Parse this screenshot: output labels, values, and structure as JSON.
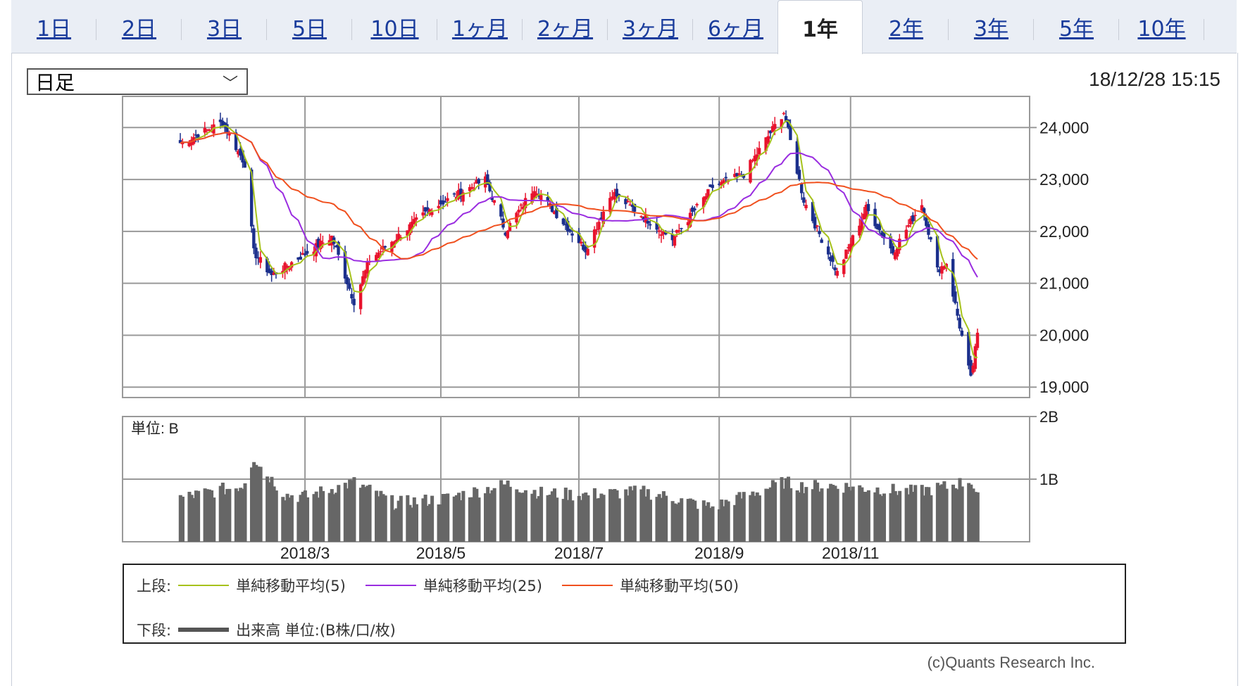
{
  "tabs": [
    {
      "label": "1日",
      "active": false
    },
    {
      "label": "2日",
      "active": false
    },
    {
      "label": "3日",
      "active": false
    },
    {
      "label": "5日",
      "active": false
    },
    {
      "label": "10日",
      "active": false
    },
    {
      "label": "1ヶ月",
      "active": false
    },
    {
      "label": "2ヶ月",
      "active": false
    },
    {
      "label": "3ヶ月",
      "active": false
    },
    {
      "label": "6ヶ月",
      "active": false
    },
    {
      "label": "1年",
      "active": true
    },
    {
      "label": "2年",
      "active": false
    },
    {
      "label": "3年",
      "active": false
    },
    {
      "label": "5年",
      "active": false
    },
    {
      "label": "10年",
      "active": false
    }
  ],
  "period_select": {
    "value": "日足",
    "icon": "chevron-down-icon"
  },
  "datetime": "18/12/28 15:15",
  "colors": {
    "up": "#e8132d",
    "down": "#1b2f8c",
    "ma5": "#a6c21b",
    "ma25": "#9a2de0",
    "ma50": "#f0501e",
    "volume": "#666666",
    "grid": "#999999"
  },
  "chart_data": [
    {
      "type": "candlestick",
      "ylim": [
        18800,
        24600
      ],
      "yticks": [
        19000,
        20000,
        21000,
        22000,
        23000,
        24000
      ],
      "ytick_labels": [
        "19,000",
        "20,000",
        "21,000",
        "22,000",
        "23,000",
        "24,000"
      ],
      "x_start": "2018-01-04",
      "x_end": "2018-12-28",
      "xticks": [
        "2018-03-01",
        "2018-05-01",
        "2018-07-02",
        "2018-09-03",
        "2018-11-01"
      ],
      "xtick_labels": [
        "2018/3",
        "2018/5",
        "2018/7",
        "2018/9",
        "2018/11"
      ],
      "close_anchors": [
        [
          "2018-01-04",
          23700
        ],
        [
          "2018-01-23",
          24100
        ],
        [
          "2018-02-02",
          23300
        ],
        [
          "2018-02-06",
          21600
        ],
        [
          "2018-02-14",
          21150
        ],
        [
          "2018-03-13",
          21900
        ],
        [
          "2018-03-23",
          20650
        ],
        [
          "2018-03-30",
          21450
        ],
        [
          "2018-04-27",
          22450
        ],
        [
          "2018-05-21",
          23000
        ],
        [
          "2018-05-30",
          22000
        ],
        [
          "2018-06-12",
          22850
        ],
        [
          "2018-07-05",
          21650
        ],
        [
          "2018-07-17",
          22750
        ],
        [
          "2018-08-13",
          21850
        ],
        [
          "2018-08-31",
          22850
        ],
        [
          "2018-09-14",
          23100
        ],
        [
          "2018-10-02",
          24300
        ],
        [
          "2018-10-11",
          22600
        ],
        [
          "2018-10-26",
          21200
        ],
        [
          "2018-11-08",
          22450
        ],
        [
          "2018-11-20",
          21600
        ],
        [
          "2018-12-03",
          22550
        ],
        [
          "2018-12-10",
          21250
        ],
        [
          "2018-12-14",
          21400
        ],
        [
          "2018-12-25",
          19150
        ],
        [
          "2018-12-28",
          20000
        ]
      ],
      "series": [
        {
          "name": "単純移動平均(5)",
          "period": 5
        },
        {
          "name": "単純移動平均(25)",
          "period": 25
        },
        {
          "name": "単純移動平均(50)",
          "period": 50
        }
      ]
    },
    {
      "type": "bar",
      "unit_label": "単位: B",
      "ylim": [
        0,
        2.0
      ],
      "yticks": [
        1,
        2
      ],
      "ytick_labels": [
        "1B",
        "2B"
      ],
      "volume_anchors": [
        [
          "2018-01-04",
          0.7
        ],
        [
          "2018-02-01",
          0.9
        ],
        [
          "2018-02-06",
          1.35
        ],
        [
          "2018-02-09",
          1.2
        ],
        [
          "2018-02-20",
          0.75
        ],
        [
          "2018-03-01",
          0.72
        ],
        [
          "2018-03-23",
          0.95
        ],
        [
          "2018-04-10",
          0.62
        ],
        [
          "2018-05-01",
          0.68
        ],
        [
          "2018-05-31",
          0.92
        ],
        [
          "2018-06-15",
          0.78
        ],
        [
          "2018-07-02",
          0.75
        ],
        [
          "2018-07-31",
          0.8
        ],
        [
          "2018-08-10",
          0.72
        ],
        [
          "2018-08-31",
          0.55
        ],
        [
          "2018-09-20",
          0.8
        ],
        [
          "2018-10-02",
          0.95
        ],
        [
          "2018-10-11",
          0.88
        ],
        [
          "2018-10-24",
          0.9
        ],
        [
          "2018-11-09",
          0.85
        ],
        [
          "2018-11-30",
          0.8
        ],
        [
          "2018-12-14",
          0.88
        ],
        [
          "2018-12-25",
          0.98
        ],
        [
          "2018-12-28",
          0.7
        ]
      ]
    }
  ],
  "legend": {
    "upper_label": "上段:",
    "lower_label": "下段:",
    "ma5": "単純移動平均(5)",
    "ma25": "単純移動平均(25)",
    "ma50": "単純移動平均(50)",
    "volume": "出来高 単位:(B株/口/枚)"
  },
  "copyright": "(c)Quants Research Inc."
}
